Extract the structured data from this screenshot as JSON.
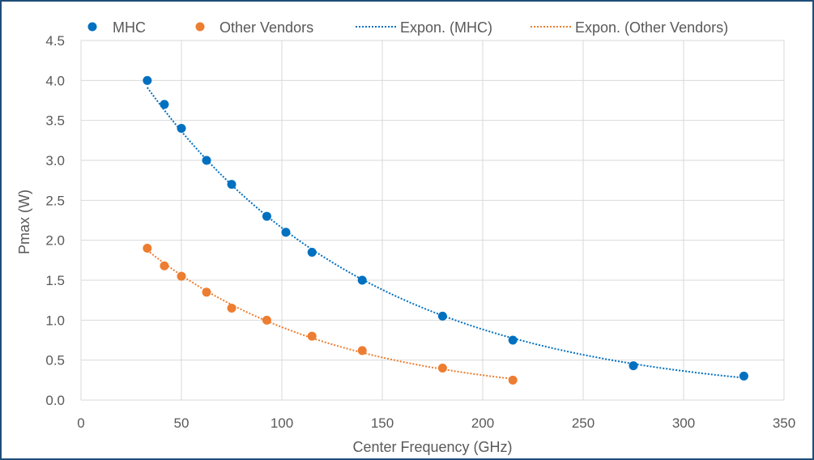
{
  "chart_data": {
    "type": "scatter",
    "title": "",
    "xlabel": "Center Frequency (GHz)",
    "ylabel": "Pmax (W)",
    "xlim": [
      0,
      350
    ],
    "ylim": [
      0,
      4.5
    ],
    "xticks": [
      0,
      50,
      100,
      150,
      200,
      250,
      300,
      350
    ],
    "yticks": [
      "0.0",
      "0.5",
      "1.0",
      "1.5",
      "2.0",
      "2.5",
      "3.0",
      "3.5",
      "4.0",
      "4.5"
    ],
    "grid": true,
    "legend_position": "top",
    "series": [
      {
        "name": "MHC",
        "color": "#0070C0",
        "x": [
          33,
          41.5,
          50,
          62.5,
          75,
          92.5,
          102,
          115,
          140,
          180,
          215,
          275,
          330
        ],
        "y": [
          4.0,
          3.7,
          3.4,
          3.0,
          2.7,
          2.3,
          2.1,
          1.85,
          1.5,
          1.05,
          0.75,
          0.43,
          0.3
        ]
      },
      {
        "name": "Other Vendors",
        "color": "#ED7D31",
        "x": [
          33,
          41.5,
          50,
          62.5,
          75,
          92.5,
          115,
          140,
          180,
          215
        ],
        "y": [
          1.9,
          1.68,
          1.55,
          1.35,
          1.15,
          1.0,
          0.8,
          0.62,
          0.4,
          0.25
        ]
      }
    ],
    "trendlines": [
      {
        "name": "Expon. (MHC)",
        "type": "exponential",
        "of": "MHC",
        "color": "#0070C0"
      },
      {
        "name": "Expon. (Other Vendors)",
        "type": "exponential",
        "of": "Other Vendors",
        "color": "#ED7D31"
      }
    ]
  }
}
